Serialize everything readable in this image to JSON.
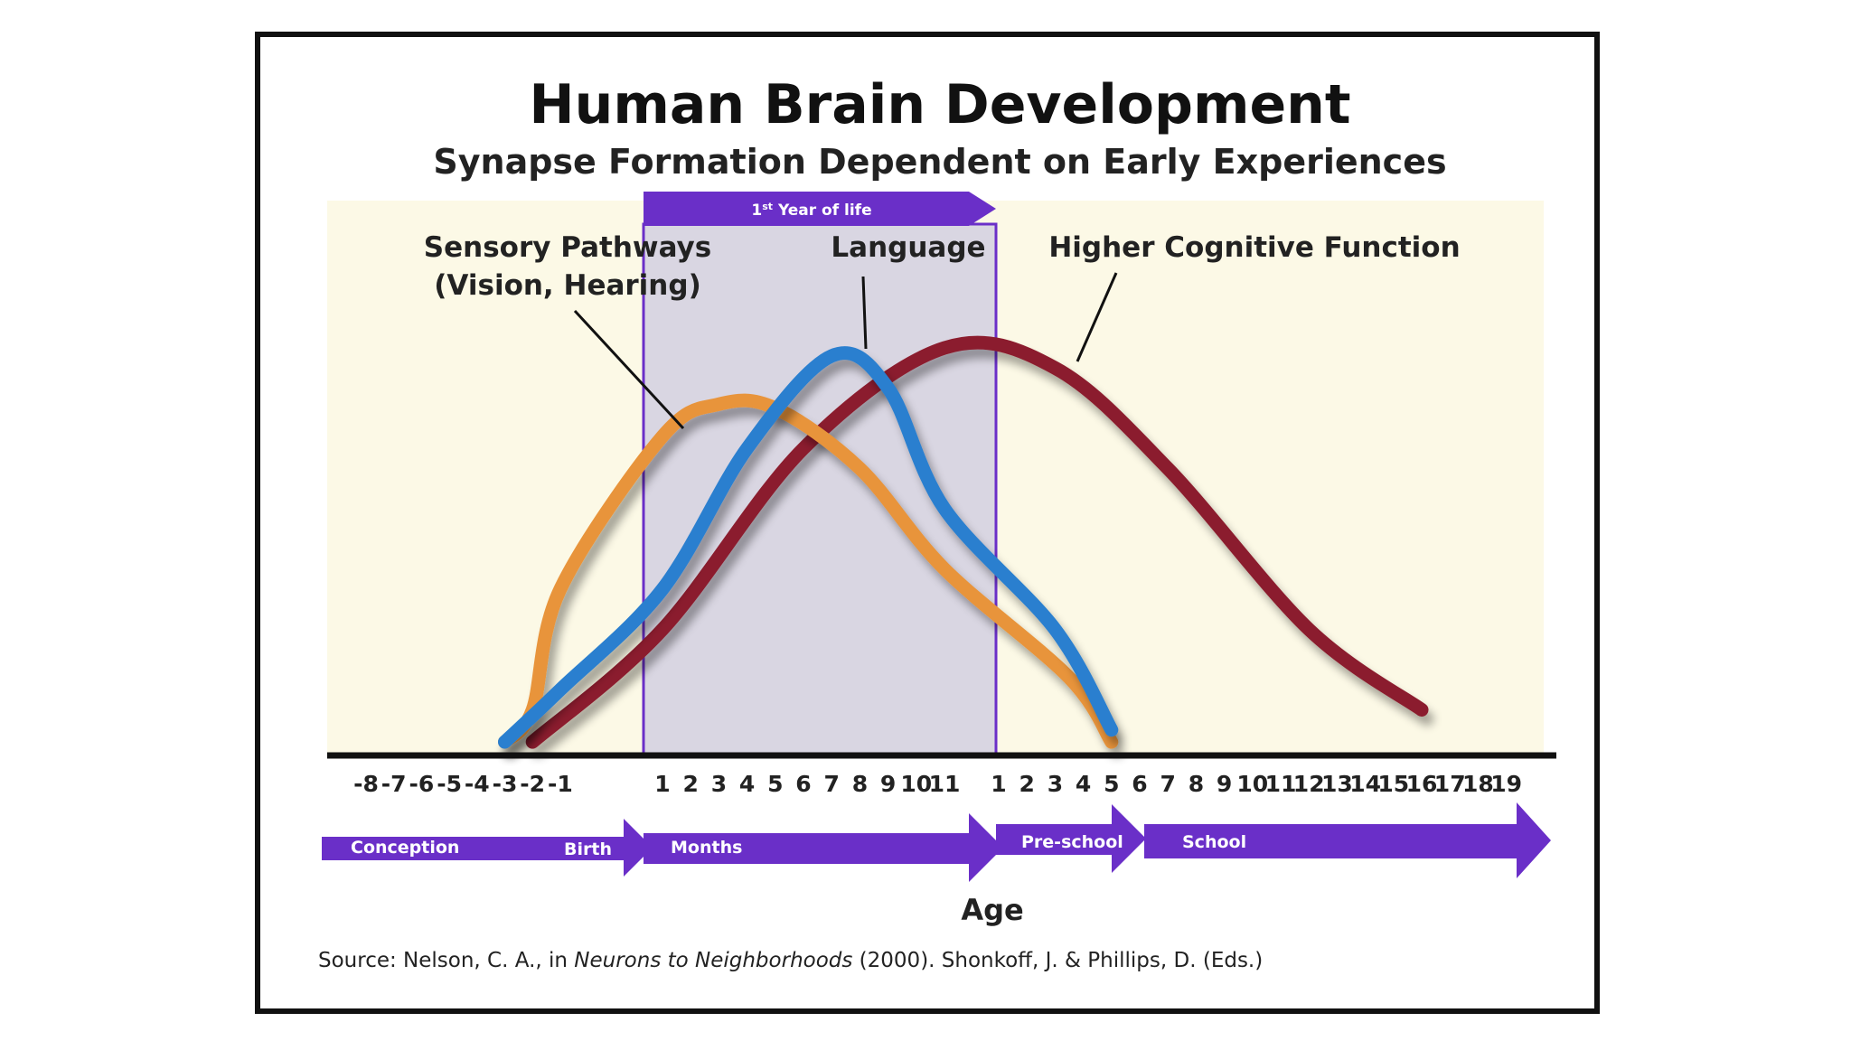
{
  "chart_data": {
    "type": "line",
    "title": "Human Brain Development",
    "subtitle": "Synapse Formation Dependent on Early Experiences",
    "xlabel": "Age",
    "x_ticks": {
      "prenatal_months": [
        "-8",
        "-7",
        "-6",
        "-5",
        "-4",
        "-3",
        "-2",
        "-1"
      ],
      "months": [
        "1",
        "2",
        "3",
        "4",
        "5",
        "6",
        "7",
        "8",
        "9",
        "10",
        "11"
      ],
      "years": [
        "1",
        "2",
        "3",
        "4",
        "5",
        "6",
        "7",
        "8",
        "9",
        "10",
        "11",
        "12",
        "13",
        "14",
        "15",
        "16",
        "17",
        "18",
        "19"
      ]
    },
    "highlight_band": {
      "label_main": "1",
      "label_sup": "st",
      "label_rest": " Year of life",
      "from": "1 month",
      "to": "1 year"
    },
    "stage_arrows": [
      {
        "labels": [
          "Conception",
          "Birth"
        ]
      },
      {
        "labels": [
          "Months"
        ]
      },
      {
        "labels": [
          "Pre-school"
        ]
      },
      {
        "labels": [
          "School"
        ]
      }
    ],
    "series": [
      {
        "name": "Sensory Pathways",
        "name_line2": "(Vision, Hearing)",
        "color": "#e8943a",
        "points": [
          [
            -3,
            0.02
          ],
          [
            -2,
            0.1
          ],
          [
            -1,
            0.4
          ],
          [
            1,
            0.78
          ],
          [
            3,
            0.86
          ],
          [
            5,
            0.85
          ],
          [
            8,
            0.7
          ],
          [
            11,
            0.45
          ],
          [
            3.5,
            0.18
          ],
          [
            5,
            0.02
          ]
        ]
      },
      {
        "name": "Language",
        "color": "#2a7fcf",
        "points": [
          [
            -3,
            0.02
          ],
          [
            -1,
            0.15
          ],
          [
            1,
            0.4
          ],
          [
            4,
            0.75
          ],
          [
            7,
            0.98
          ],
          [
            9,
            0.9
          ],
          [
            11,
            0.6
          ],
          [
            3,
            0.3
          ],
          [
            5,
            0.05
          ]
        ]
      },
      {
        "name": "Higher Cognitive Function",
        "color": "#8b1e2d",
        "points": [
          [
            -2,
            0.02
          ],
          [
            1,
            0.3
          ],
          [
            6,
            0.75
          ],
          [
            11,
            1.0
          ],
          [
            3,
            0.95
          ],
          [
            7,
            0.7
          ],
          [
            12,
            0.3
          ],
          [
            16,
            0.1
          ]
        ]
      }
    ],
    "source": {
      "prefix": "Source: Nelson, C. A., in ",
      "italic": "Neurons to Neighborhoods",
      "suffix": " (2000). Shonkoff, J. & Phillips, D. (Eds.)"
    },
    "colors": {
      "band": "#6a2fc8",
      "panel": "#fcf9e6",
      "shade": "#d9d6e2"
    }
  }
}
